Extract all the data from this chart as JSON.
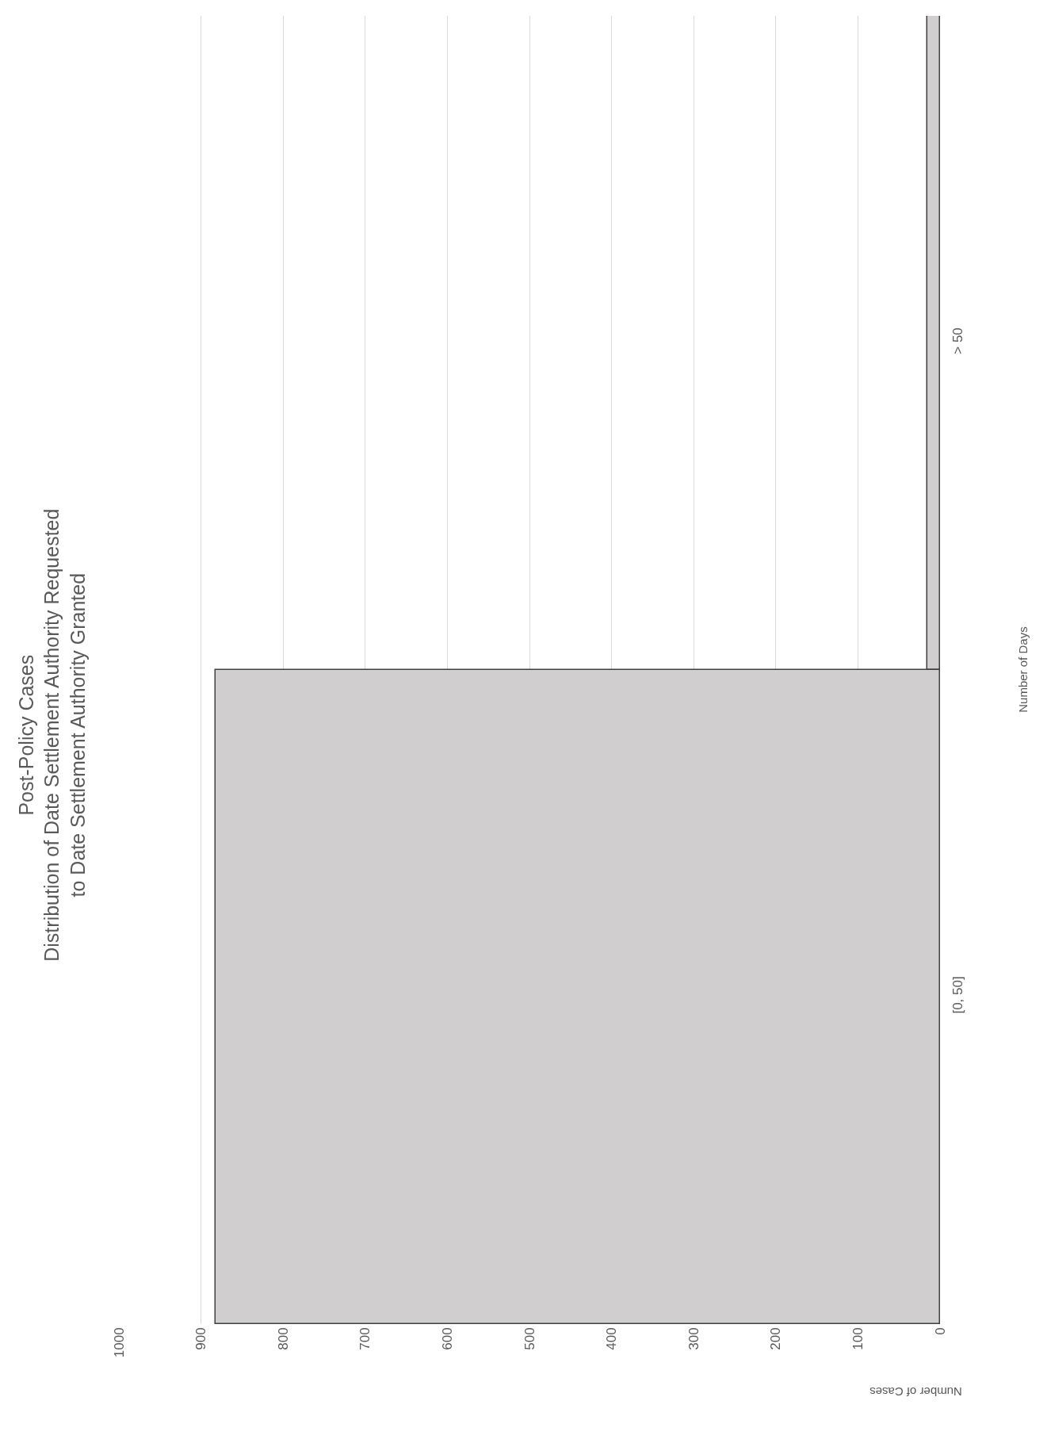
{
  "chart_data": {
    "type": "bar",
    "orientation": "horizontal",
    "title": "Post-Policy Cases\nDistribution of Date Settlement Authority Requested\nto Date Settlement Authority Granted",
    "ylabel": "Number of Days",
    "xlabel": "Number of Cases",
    "categories": [
      "> 50",
      "[0, 50]"
    ],
    "values": [
      15,
      882
    ],
    "color": "#d0cecf",
    "xlim": [
      1000,
      0
    ],
    "xticks": [
      0,
      100,
      200,
      300,
      400,
      500,
      600,
      700,
      800,
      900,
      1000
    ],
    "grid": true,
    "legend": false
  }
}
